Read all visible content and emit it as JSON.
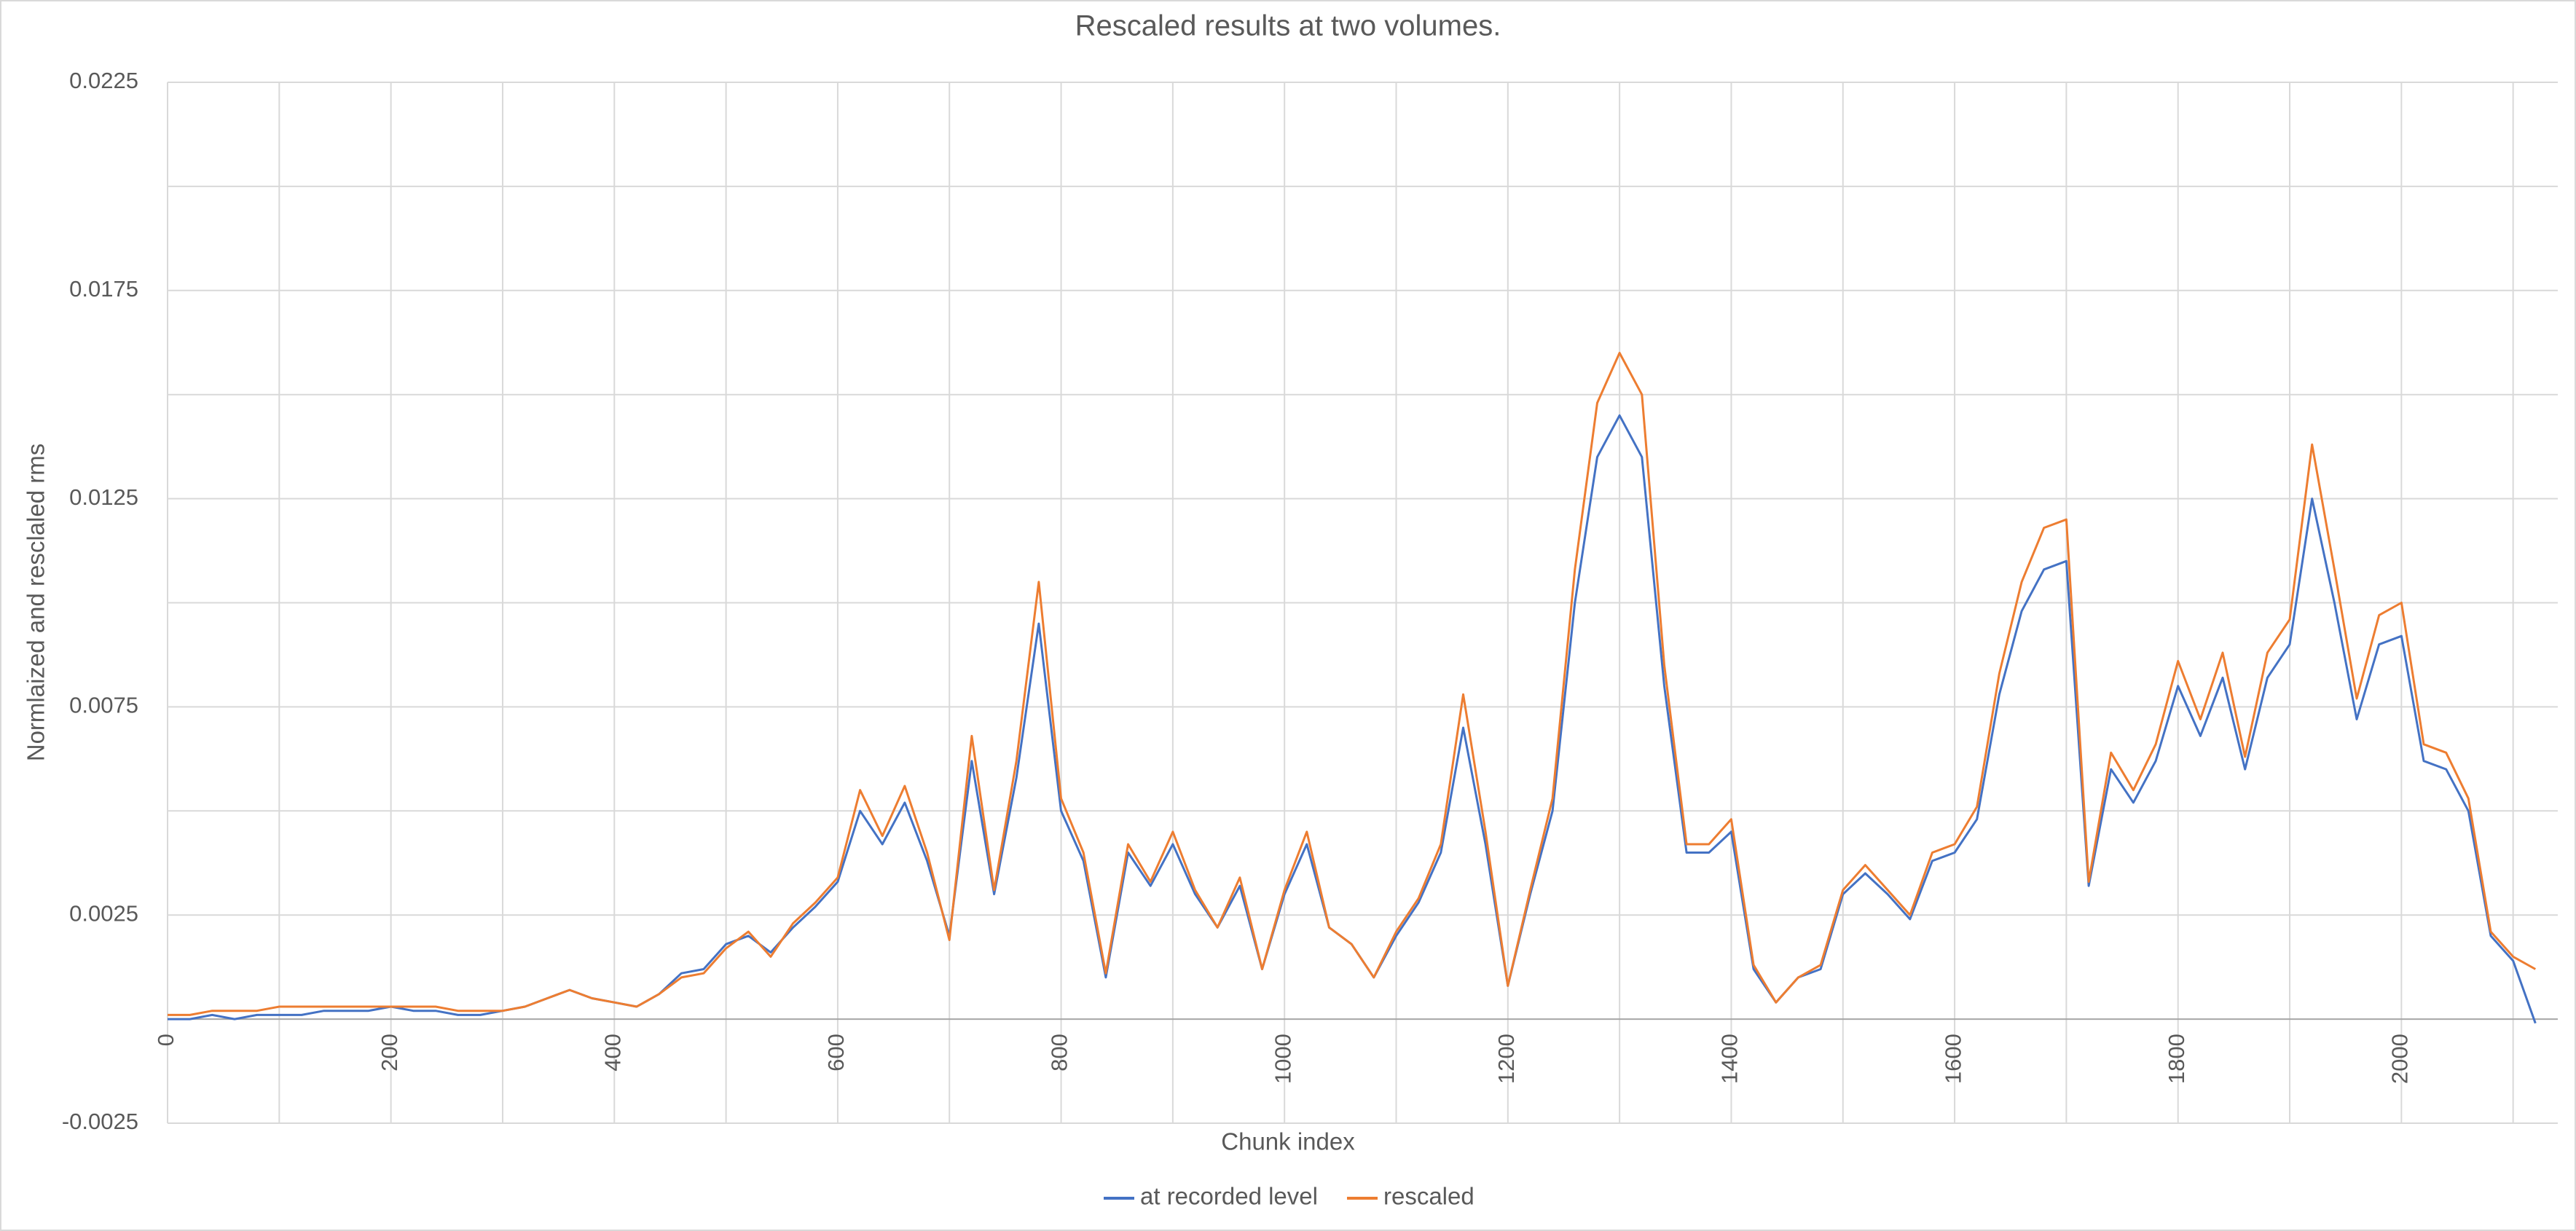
{
  "chart_data": {
    "type": "line",
    "title": "Rescaled results at two volumes.",
    "x_label": "Chunk index",
    "y_label": "Normlaized and resclaled rms",
    "x": [
      0,
      20,
      40,
      60,
      80,
      100,
      120,
      140,
      160,
      180,
      200,
      220,
      240,
      260,
      280,
      300,
      320,
      340,
      360,
      380,
      400,
      420,
      440,
      460,
      480,
      500,
      520,
      540,
      560,
      580,
      600,
      620,
      640,
      660,
      680,
      700,
      720,
      740,
      760,
      780,
      800,
      820,
      840,
      860,
      880,
      900,
      920,
      940,
      960,
      980,
      1000,
      1020,
      1040,
      1060,
      1080,
      1100,
      1120,
      1140,
      1160,
      1180,
      1200,
      1220,
      1240,
      1260,
      1280,
      1300,
      1320,
      1340,
      1360,
      1380,
      1400,
      1420,
      1440,
      1460,
      1480,
      1500,
      1520,
      1540,
      1560,
      1580,
      1600,
      1620,
      1640,
      1660,
      1680,
      1700,
      1720,
      1740,
      1760,
      1780,
      1800,
      1820,
      1840,
      1860,
      1880,
      1900,
      1920,
      1940,
      1960,
      1980,
      2000,
      2020,
      2040,
      2060,
      2080,
      2100,
      2120
    ],
    "series": [
      {
        "name": "at recorded level",
        "color": "#4472c4",
        "values": [
          0.0,
          0.0,
          0.0001,
          0.0,
          0.0001,
          0.0001,
          0.0001,
          0.0002,
          0.0002,
          0.0002,
          0.0003,
          0.0002,
          0.0002,
          0.0001,
          0.0001,
          0.0002,
          0.0003,
          0.0005,
          0.0007,
          0.0005,
          0.0004,
          0.0003,
          0.0006,
          0.0011,
          0.0012,
          0.0018,
          0.002,
          0.0016,
          0.0022,
          0.0027,
          0.0033,
          0.005,
          0.0042,
          0.0052,
          0.0038,
          0.002,
          0.0062,
          0.003,
          0.0058,
          0.0095,
          0.005,
          0.0038,
          0.001,
          0.004,
          0.0032,
          0.0042,
          0.003,
          0.0022,
          0.0032,
          0.0012,
          0.003,
          0.0042,
          0.0022,
          0.0018,
          0.001,
          0.002,
          0.0028,
          0.004,
          0.007,
          0.0042,
          0.0008,
          0.003,
          0.005,
          0.01,
          0.0135,
          0.0145,
          0.0135,
          0.008,
          0.004,
          0.004,
          0.0045,
          0.0012,
          0.0004,
          0.001,
          0.0012,
          0.003,
          0.0035,
          0.003,
          0.0024,
          0.0038,
          0.004,
          0.0048,
          0.0078,
          0.0098,
          0.0108,
          0.011,
          0.0032,
          0.006,
          0.0052,
          0.0062,
          0.008,
          0.0068,
          0.0082,
          0.006,
          0.0082,
          0.009,
          0.0125,
          0.01,
          0.0072,
          0.009,
          0.0092,
          0.0062,
          0.006,
          0.005,
          0.002,
          0.0014,
          -0.0001
        ]
      },
      {
        "name": "rescaled",
        "color": "#ed7d31",
        "values": [
          0.0001,
          0.0001,
          0.0002,
          0.0002,
          0.0002,
          0.0003,
          0.0003,
          0.0003,
          0.0003,
          0.0003,
          0.0003,
          0.0003,
          0.0003,
          0.0002,
          0.0002,
          0.0002,
          0.0003,
          0.0005,
          0.0007,
          0.0005,
          0.0004,
          0.0003,
          0.0006,
          0.001,
          0.0011,
          0.0017,
          0.0021,
          0.0015,
          0.0023,
          0.0028,
          0.0034,
          0.0055,
          0.0044,
          0.0056,
          0.004,
          0.0019,
          0.0068,
          0.0031,
          0.0062,
          0.0105,
          0.0053,
          0.004,
          0.0011,
          0.0042,
          0.0033,
          0.0045,
          0.0031,
          0.0022,
          0.0034,
          0.0012,
          0.0031,
          0.0045,
          0.0022,
          0.0018,
          0.001,
          0.0021,
          0.0029,
          0.0042,
          0.0078,
          0.0045,
          0.0008,
          0.0031,
          0.0053,
          0.0108,
          0.0148,
          0.016,
          0.015,
          0.0085,
          0.0042,
          0.0042,
          0.0048,
          0.0013,
          0.0004,
          0.001,
          0.0013,
          0.0031,
          0.0037,
          0.0031,
          0.0025,
          0.004,
          0.0042,
          0.0051,
          0.0083,
          0.0105,
          0.0118,
          0.012,
          0.0033,
          0.0064,
          0.0055,
          0.0066,
          0.0086,
          0.0072,
          0.0088,
          0.0063,
          0.0088,
          0.0096,
          0.0138,
          0.0108,
          0.0077,
          0.0097,
          0.01,
          0.0066,
          0.0064,
          0.0053,
          0.0021,
          0.0015,
          0.0012
        ]
      }
    ],
    "xlim": [
      0,
      2140
    ],
    "xticks": [
      0,
      200,
      400,
      600,
      800,
      1000,
      1200,
      1400,
      1600,
      1800,
      2000
    ],
    "x_minor_grid": [
      100,
      300,
      500,
      700,
      900,
      1100,
      1300,
      1500,
      1700,
      1900,
      2100
    ],
    "ylim": [
      -0.0025,
      0.0225
    ],
    "yticks": [
      -0.0025,
      0.0025,
      0.0075,
      0.0125,
      0.0175,
      0.0225
    ],
    "y_minor_grid": [
      0.005,
      0.01,
      0.015,
      0.02
    ],
    "grid": true,
    "legend": "bottom"
  }
}
